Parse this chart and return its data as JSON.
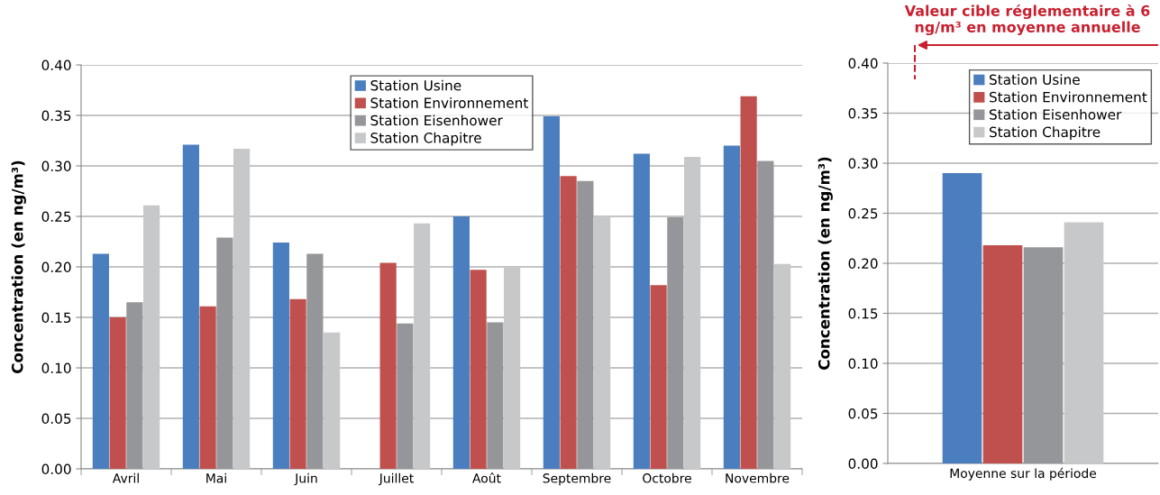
{
  "chart_data": [
    {
      "type": "bar",
      "categories": [
        "Avril",
        "Mai",
        "Juin",
        "Juillet",
        "Août",
        "Septembre",
        "Octobre",
        "Novembre"
      ],
      "ylabel": "Concentration (en ng/m³)",
      "ylim": [
        0,
        0.4
      ],
      "yticks": [
        {
          "value": 0,
          "label": "0.00"
        },
        {
          "value": 0.05,
          "label": "0.05"
        },
        {
          "value": 0.1,
          "label": "0.10"
        },
        {
          "value": 0.15,
          "label": "0.15"
        },
        {
          "value": 0.2,
          "label": "0.20"
        },
        {
          "value": 0.25,
          "label": "0.25"
        },
        {
          "value": 0.3,
          "label": "0.30"
        },
        {
          "value": 0.35,
          "label": "0.35"
        },
        {
          "value": 0.4,
          "label": "0.40"
        }
      ],
      "grid": "y",
      "legend": "top",
      "series": [
        {
          "name": "Station Usine",
          "color": "#4a7ebf",
          "values": [
            0.213,
            0.321,
            0.224,
            null,
            0.25,
            0.349,
            0.312,
            0.32
          ]
        },
        {
          "name": "Station Environnement",
          "color": "#c0504d",
          "values": [
            0.15,
            0.161,
            0.168,
            0.204,
            0.197,
            0.29,
            0.182,
            0.369
          ]
        },
        {
          "name": "Station Eisenhower",
          "color": "#959699",
          "values": [
            0.165,
            0.229,
            0.213,
            0.144,
            0.145,
            0.285,
            0.249,
            0.305
          ]
        },
        {
          "name": "Station Chapitre",
          "color": "#c7c8ca",
          "values": [
            0.261,
            0.317,
            0.135,
            0.243,
            0.2,
            0.25,
            0.309,
            0.203
          ]
        }
      ]
    },
    {
      "type": "bar",
      "categories": [
        "Moyenne sur la période"
      ],
      "ylabel": "Concentration (en ng/m³)",
      "ylim": [
        0,
        0.4
      ],
      "yticks": [
        {
          "value": 0,
          "label": "0.00"
        },
        {
          "value": 0.05,
          "label": "0.05"
        },
        {
          "value": 0.1,
          "label": "0.10"
        },
        {
          "value": 0.15,
          "label": "0.15"
        },
        {
          "value": 0.2,
          "label": "0.20"
        },
        {
          "value": 0.25,
          "label": "0.25"
        },
        {
          "value": 0.3,
          "label": "0.30"
        },
        {
          "value": 0.35,
          "label": "0.35"
        },
        {
          "value": 0.4,
          "label": "0.40"
        }
      ],
      "grid": "y",
      "legend": "top right",
      "annotations": [
        "Valeur cible réglementaire à 6 ng/m³ en moyenne annuelle"
      ],
      "series": [
        {
          "name": "Station Usine",
          "color": "#4a7ebf",
          "values": [
            0.29
          ]
        },
        {
          "name": "Station Environnement",
          "color": "#c0504d",
          "values": [
            0.218
          ]
        },
        {
          "name": "Station Eisenhower",
          "color": "#959699",
          "values": [
            0.216
          ]
        },
        {
          "name": "Station Chapitre",
          "color": "#c7c8ca",
          "values": [
            0.241
          ]
        }
      ]
    }
  ]
}
